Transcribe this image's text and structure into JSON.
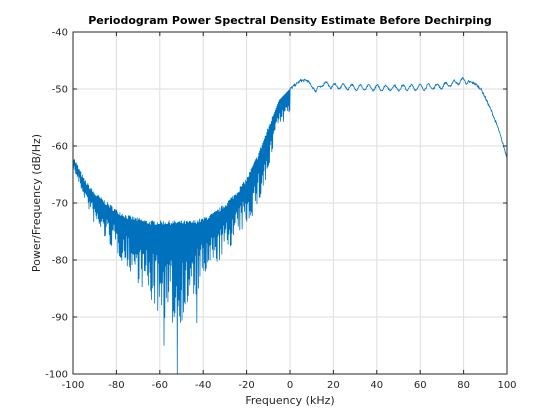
{
  "chart_data": {
    "type": "line",
    "title": "Periodogram Power Spectral Density Estimate Before Dechirping",
    "xlabel": "Frequency (kHz)",
    "ylabel": "Power/Frequency (dB/Hz)",
    "xlim": [
      -100,
      100
    ],
    "ylim": [
      -100,
      -40
    ],
    "xticks": [
      -100,
      -80,
      -60,
      -40,
      -20,
      0,
      20,
      40,
      60,
      80,
      100
    ],
    "yticks": [
      -100,
      -90,
      -80,
      -70,
      -60,
      -50,
      -40
    ],
    "xtick_labels": [
      "-100",
      "-80",
      "-60",
      "-40",
      "-20",
      "0",
      "20",
      "40",
      "60",
      "80",
      "100"
    ],
    "ytick_labels": [
      "-100",
      "-90",
      "-80",
      "-70",
      "-60",
      "-50",
      "-40"
    ],
    "grid": true,
    "series": [
      {
        "color": "#0072BD",
        "envelope": {
          "x": [
            -100,
            -95,
            -90,
            -85,
            -80,
            -75,
            -70,
            -65,
            -60,
            -55,
            -50,
            -45,
            -40,
            -35,
            -30,
            -25,
            -20,
            -15,
            -10,
            -5,
            0,
            5,
            8,
            10,
            12,
            15,
            20,
            30,
            40,
            50,
            60,
            70,
            80,
            85,
            88,
            90,
            93,
            96,
            100
          ],
          "y": [
            -62,
            -66,
            -68.5,
            -70,
            -71.5,
            -72.5,
            -73,
            -73.5,
            -73.5,
            -73.5,
            -73.5,
            -73.5,
            -73,
            -72,
            -70.5,
            -68.5,
            -66,
            -62,
            -57,
            -52,
            -50,
            -48.5,
            -48.5,
            -49.5,
            -50.5,
            -49,
            -49.5,
            -49.7,
            -49.8,
            -49.8,
            -49.7,
            -49.5,
            -48.5,
            -49,
            -50,
            -51.5,
            -54,
            -57,
            -62
          ]
        },
        "floor": {
          "x": [
            -100,
            -90,
            -80,
            -70,
            -65,
            -60,
            -55,
            -50,
            -45,
            -40,
            -30,
            -20,
            -15,
            -10,
            -8
          ],
          "y": [
            -64,
            -74,
            -79,
            -84,
            -87,
            -90,
            -92,
            -91,
            -88,
            -84,
            -79,
            -74,
            -71,
            -66,
            -62
          ]
        },
        "deep_nulls": {
          "x": [
            -58,
            -55,
            -52,
            -50,
            -47,
            -43
          ],
          "y": [
            -95,
            -97,
            -100,
            -96,
            -93,
            -91
          ]
        }
      }
    ]
  }
}
